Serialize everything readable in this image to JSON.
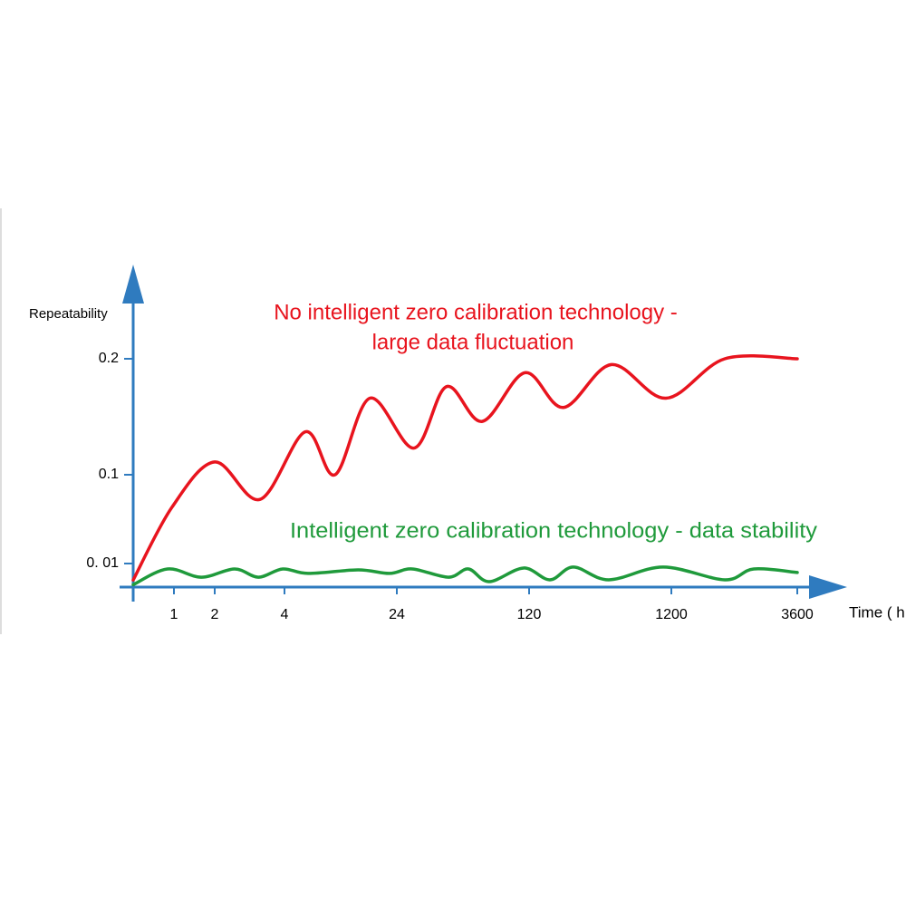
{
  "chart_data": {
    "type": "line",
    "y_label": "Repeatability",
    "x_label": "Time ( h )",
    "annotations": [
      "No intelligent zero calibration technology -",
      "large data fluctuation",
      "Intelligent zero calibration technology - data stability"
    ],
    "xlim": [
      0,
      3600
    ],
    "xticks": [
      1,
      2,
      4,
      24,
      120,
      1200,
      3600
    ],
    "ylim": [
      0,
      0.2
    ],
    "yticks": [
      {
        "value": 0.01,
        "label": "0. 01"
      },
      0.1,
      0.2
    ],
    "series": [
      {
        "name": "No intelligent zero calibration technology",
        "color": "#e8141e",
        "x": [
          0,
          0.95,
          2,
          3.3,
          7.7,
          13,
          19.2,
          36.5,
          60,
          86,
          117,
          381,
          746,
          1159,
          2219,
          3600
        ],
        "values": [
          0.003,
          0.067,
          0.111,
          0.075,
          0.137,
          0.1,
          0.166,
          0.123,
          0.176,
          0.146,
          0.188,
          0.158,
          0.195,
          0.166,
          0.2,
          0.2
        ]
      },
      {
        "name": "Intelligent zero calibration technology",
        "color": "#1f9a3b",
        "x": [
          0,
          0.84,
          1.67,
          2.57,
          3.25,
          3.95,
          8.2,
          17.1,
          22.7,
          35.2,
          61.5,
          76,
          91,
          116,
          278,
          457,
          725,
          1138,
          2219,
          2771,
          3600
        ],
        "values": [
          0.001,
          0.0077,
          0.0042,
          0.0077,
          0.0042,
          0.0077,
          0.0058,
          0.0073,
          0.0058,
          0.0077,
          0.0042,
          0.0077,
          0.0023,
          0.0081,
          0.0031,
          0.0085,
          0.0031,
          0.0085,
          0.0031,
          0.0077,
          0.0062
        ]
      }
    ]
  }
}
